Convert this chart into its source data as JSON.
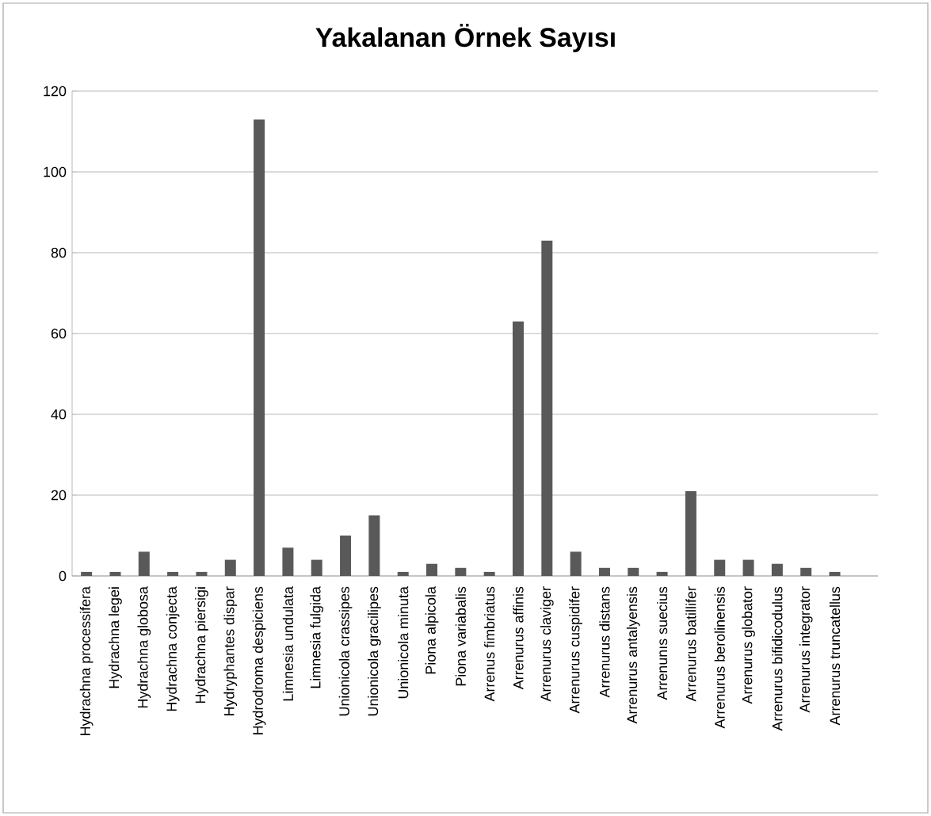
{
  "chart_data": {
    "type": "bar",
    "title": "Yakalanan Örnek Sayısı",
    "categories": [
      "Hydrachna  processifera",
      "Hydrachna  legei",
      "Hydrachna globosa",
      "Hydrachna  conjecta",
      "Hydrachna  piersigi",
      "Hydryphantes  dispar",
      "Hydrodroma despiciens",
      "Limnesia undulata",
      "Limnesia fulgida",
      "Unionicola crassipes",
      "Unionicola gracilipes",
      "Unionicola minuta",
      "Piona alpicola",
      "Piona variabalis",
      "Arrenus  fimbriatus",
      "Arrenurus  affinis",
      "Arrenurus claviger",
      "Arrenurus  cuspidifer",
      "Arrenurus  distans",
      "Arrenurus  antalyensis",
      "Arrenunıs suecius",
      "Arrenurus batillifer",
      "Arrenurus berolinensis",
      "Arrenurus globator",
      "Arrenurus bifidicodulus",
      "Arrenurus  integrator",
      "Arrenurus  truncatellus",
      null
    ],
    "values": [
      1,
      1,
      6,
      1,
      1,
      4,
      113,
      7,
      4,
      10,
      15,
      1,
      3,
      2,
      1,
      63,
      83,
      6,
      2,
      2,
      1,
      21,
      4,
      4,
      3,
      2,
      1,
      null
    ],
    "color": "#595959",
    "ylim": [
      0,
      120
    ],
    "yticks": [
      0,
      20,
      40,
      60,
      80,
      100,
      120
    ],
    "grid": "y"
  }
}
